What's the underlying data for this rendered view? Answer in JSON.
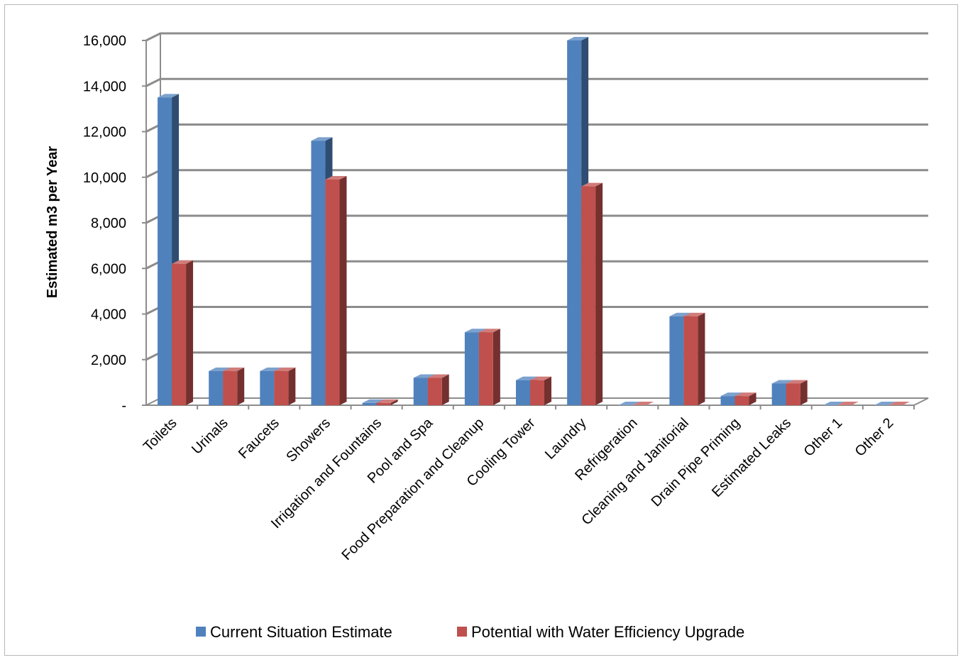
{
  "chart_data": {
    "type": "bar",
    "title": "",
    "xlabel": "",
    "ylabel": "Estimated m3 per Year",
    "ylim": [
      0,
      16000
    ],
    "yticks": [
      0,
      2000,
      4000,
      6000,
      8000,
      10000,
      12000,
      14000,
      16000
    ],
    "ytick_labels": [
      "-",
      "2,000",
      "4,000",
      "6,000",
      "8,000",
      "10,000",
      "12,000",
      "14,000",
      "16,000"
    ],
    "grid": true,
    "legend_position": "bottom",
    "categories": [
      "Toilets",
      "Urinals",
      "Faucets",
      "Showers",
      "Irrigation and Fountains",
      "Pool and Spa",
      "Food Preparation and Cleanup",
      "Cooling Tower",
      "Laundry",
      "Refrigeration",
      "Cleaning and Janitorial",
      "Drain Pipe Priming",
      "Estimated Leaks",
      "Other 1",
      "Other 2"
    ],
    "series": [
      {
        "name": "Current Situation Estimate",
        "color": "#4f81bd",
        "values": [
          13500,
          1500,
          1500,
          11600,
          100,
          1200,
          3200,
          1100,
          16000,
          0,
          3900,
          400,
          950,
          0,
          0
        ]
      },
      {
        "name": "Potential with Water Efficiency Upgrade",
        "color": "#c0504d",
        "values": [
          6200,
          1500,
          1500,
          9900,
          100,
          1200,
          3200,
          1100,
          9600,
          0,
          3900,
          400,
          950,
          0,
          0
        ]
      }
    ]
  }
}
